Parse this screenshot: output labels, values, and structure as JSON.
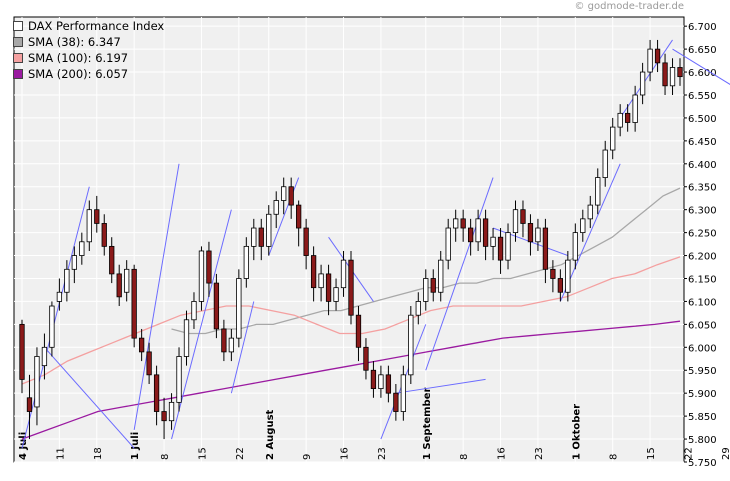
{
  "watermark": "© godmode-trader.de",
  "legend": [
    {
      "label": "DAX Performance Index",
      "color": "#ffffff"
    },
    {
      "label": "SMA (38): 6.347",
      "color": "#a8a8a8"
    },
    {
      "label": "SMA (100): 6.197",
      "color": "#f4a0a0"
    },
    {
      "label": "SMA (200): 6.057",
      "color": "#9a1aa0"
    }
  ],
  "chart_data": {
    "type": "candlestick",
    "title": "",
    "ylim": [
      5.75,
      6.72
    ],
    "y_ticks": [
      "5.750",
      "5.800",
      "5.850",
      "5.900",
      "5.950",
      "6.000",
      "6.050",
      "6.100",
      "6.150",
      "6.200",
      "6.250",
      "6.300",
      "6.350",
      "6.400",
      "6.450",
      "6.500",
      "6.550",
      "6.600",
      "6.650",
      "6.700"
    ],
    "y_tick_values": [
      5.75,
      5.8,
      5.85,
      5.9,
      5.95,
      6.0,
      6.05,
      6.1,
      6.15,
      6.2,
      6.25,
      6.3,
      6.35,
      6.4,
      6.45,
      6.5,
      6.55,
      6.6,
      6.65,
      6.7
    ],
    "x_ticks": [
      {
        "label": "4 Juli",
        "i": 0,
        "bold": true
      },
      {
        "label": "11",
        "i": 5,
        "bold": false
      },
      {
        "label": "18",
        "i": 10,
        "bold": false
      },
      {
        "label": "1 Juli",
        "i": 15,
        "bold": true
      },
      {
        "label": "8",
        "i": 19,
        "bold": false
      },
      {
        "label": "15",
        "i": 24,
        "bold": false
      },
      {
        "label": "22",
        "i": 29,
        "bold": false
      },
      {
        "label": "2 August",
        "i": 33,
        "bold": true
      },
      {
        "label": "9",
        "i": 38,
        "bold": false
      },
      {
        "label": "16",
        "i": 43,
        "bold": false
      },
      {
        "label": "23",
        "i": 48,
        "bold": false
      },
      {
        "label": "1 September",
        "i": 54,
        "bold": true
      },
      {
        "label": "8",
        "i": 59,
        "bold": false
      },
      {
        "label": "16",
        "i": 64,
        "bold": false
      },
      {
        "label": "23",
        "i": 69,
        "bold": false
      },
      {
        "label": "1 Oktober",
        "i": 74,
        "bold": true
      },
      {
        "label": "8",
        "i": 79,
        "bold": false
      },
      {
        "label": "15",
        "i": 84,
        "bold": false
      },
      {
        "label": "22",
        "i": 89,
        "bold": false
      },
      {
        "label": "29",
        "i": 94,
        "bold": false
      }
    ],
    "candles": [
      [
        6.05,
        5.93,
        6.06,
        5.9
      ],
      [
        5.89,
        5.86,
        5.94,
        5.8
      ],
      [
        5.87,
        5.98,
        6.0,
        5.83
      ],
      [
        5.96,
        6.0,
        6.03,
        5.93
      ],
      [
        6.0,
        6.09,
        6.1,
        5.98
      ],
      [
        6.1,
        6.12,
        6.15,
        6.08
      ],
      [
        6.12,
        6.17,
        6.19,
        6.1
      ],
      [
        6.17,
        6.2,
        6.22,
        6.14
      ],
      [
        6.2,
        6.23,
        6.25,
        6.18
      ],
      [
        6.23,
        6.3,
        6.32,
        6.21
      ],
      [
        6.3,
        6.27,
        6.33,
        6.25
      ],
      [
        6.27,
        6.22,
        6.29,
        6.2
      ],
      [
        6.22,
        6.16,
        6.24,
        6.14
      ],
      [
        6.16,
        6.11,
        6.18,
        6.09
      ],
      [
        6.12,
        6.17,
        6.19,
        6.1
      ],
      [
        6.17,
        6.02,
        6.18,
        6.0
      ],
      [
        6.02,
        5.99,
        6.04,
        5.97
      ],
      [
        5.99,
        5.94,
        6.01,
        5.92
      ],
      [
        5.94,
        5.86,
        5.96,
        5.83
      ],
      [
        5.86,
        5.84,
        5.89,
        5.8
      ],
      [
        5.84,
        5.88,
        5.9,
        5.82
      ],
      [
        5.88,
        5.98,
        6.0,
        5.86
      ],
      [
        5.98,
        6.06,
        6.08,
        5.96
      ],
      [
        6.06,
        6.1,
        6.12,
        6.04
      ],
      [
        6.1,
        6.21,
        6.22,
        6.08
      ],
      [
        6.21,
        6.14,
        6.23,
        6.11
      ],
      [
        6.14,
        6.04,
        6.16,
        6.02
      ],
      [
        6.04,
        5.99,
        6.06,
        5.97
      ],
      [
        5.99,
        6.02,
        6.04,
        5.97
      ],
      [
        6.02,
        6.15,
        6.17,
        6.0
      ],
      [
        6.15,
        6.22,
        6.24,
        6.13
      ],
      [
        6.22,
        6.26,
        6.28,
        6.19
      ],
      [
        6.26,
        6.22,
        6.28,
        6.19
      ],
      [
        6.22,
        6.29,
        6.31,
        6.2
      ],
      [
        6.29,
        6.32,
        6.34,
        6.26
      ],
      [
        6.32,
        6.35,
        6.37,
        6.29
      ],
      [
        6.35,
        6.31,
        6.37,
        6.28
      ],
      [
        6.31,
        6.26,
        6.32,
        6.22
      ],
      [
        6.26,
        6.2,
        6.28,
        6.17
      ],
      [
        6.2,
        6.13,
        6.22,
        6.1
      ],
      [
        6.13,
        6.16,
        6.18,
        6.1
      ],
      [
        6.16,
        6.1,
        6.18,
        6.07
      ],
      [
        6.1,
        6.13,
        6.15,
        6.08
      ],
      [
        6.13,
        6.19,
        6.21,
        6.11
      ],
      [
        6.19,
        6.07,
        6.21,
        6.05
      ],
      [
        6.07,
        6.0,
        6.09,
        5.97
      ],
      [
        6.0,
        5.95,
        6.02,
        5.93
      ],
      [
        5.95,
        5.91,
        5.97,
        5.89
      ],
      [
        5.91,
        5.94,
        5.96,
        5.89
      ],
      [
        5.94,
        5.9,
        5.96,
        5.88
      ],
      [
        5.9,
        5.86,
        5.92,
        5.84
      ],
      [
        5.86,
        5.94,
        5.96,
        5.84
      ],
      [
        5.94,
        6.07,
        6.09,
        5.92
      ],
      [
        6.07,
        6.1,
        6.12,
        6.05
      ],
      [
        6.1,
        6.15,
        6.17,
        6.08
      ],
      [
        6.15,
        6.12,
        6.17,
        6.1
      ],
      [
        6.12,
        6.19,
        6.21,
        6.1
      ],
      [
        6.19,
        6.26,
        6.28,
        6.17
      ],
      [
        6.26,
        6.28,
        6.3,
        6.23
      ],
      [
        6.28,
        6.26,
        6.3,
        6.23
      ],
      [
        6.26,
        6.23,
        6.28,
        6.2
      ],
      [
        6.23,
        6.28,
        6.3,
        6.21
      ],
      [
        6.28,
        6.22,
        6.3,
        6.19
      ],
      [
        6.22,
        6.24,
        6.26,
        6.19
      ],
      [
        6.24,
        6.19,
        6.26,
        6.16
      ],
      [
        6.19,
        6.25,
        6.27,
        6.17
      ],
      [
        6.25,
        6.3,
        6.32,
        6.23
      ],
      [
        6.3,
        6.27,
        6.32,
        6.24
      ],
      [
        6.27,
        6.23,
        6.29,
        6.2
      ],
      [
        6.23,
        6.26,
        6.28,
        6.21
      ],
      [
        6.26,
        6.17,
        6.28,
        6.14
      ],
      [
        6.17,
        6.15,
        6.19,
        6.12
      ],
      [
        6.15,
        6.12,
        6.17,
        6.1
      ],
      [
        6.12,
        6.19,
        6.21,
        6.1
      ],
      [
        6.19,
        6.25,
        6.27,
        6.17
      ],
      [
        6.25,
        6.28,
        6.3,
        6.23
      ],
      [
        6.28,
        6.31,
        6.33,
        6.26
      ],
      [
        6.31,
        6.37,
        6.39,
        6.29
      ],
      [
        6.37,
        6.43,
        6.45,
        6.35
      ],
      [
        6.43,
        6.48,
        6.5,
        6.41
      ],
      [
        6.48,
        6.51,
        6.53,
        6.46
      ],
      [
        6.51,
        6.49,
        6.53,
        6.47
      ],
      [
        6.49,
        6.55,
        6.57,
        6.47
      ],
      [
        6.55,
        6.6,
        6.62,
        6.53
      ],
      [
        6.6,
        6.65,
        6.67,
        6.58
      ],
      [
        6.65,
        6.62,
        6.67,
        6.6
      ],
      [
        6.62,
        6.57,
        6.64,
        6.55
      ],
      [
        6.57,
        6.61,
        6.63,
        6.55
      ],
      [
        6.61,
        6.59,
        6.63,
        6.57
      ]
    ],
    "series": [
      {
        "name": "SMA (38): 6.347",
        "color": "#a8a8a8",
        "values": [
          6.04,
          6.03,
          6.03,
          6.04,
          6.04,
          6.05,
          6.05,
          6.06,
          6.07,
          6.08,
          6.08,
          6.09,
          6.1,
          6.11,
          6.12,
          6.13,
          6.13,
          6.14,
          6.14,
          6.15,
          6.15,
          6.16,
          6.17,
          6.18,
          6.2,
          6.22,
          6.24,
          6.27,
          6.3,
          6.33,
          6.347
        ]
      },
      {
        "name": "SMA (100): 6.197",
        "color": "#f4a0a0",
        "values": [
          5.92,
          5.94,
          5.97,
          5.99,
          6.01,
          6.03,
          6.05,
          6.07,
          6.08,
          6.09,
          6.09,
          6.08,
          6.07,
          6.05,
          6.03,
          6.03,
          6.04,
          6.06,
          6.08,
          6.09,
          6.09,
          6.09,
          6.09,
          6.1,
          6.11,
          6.13,
          6.15,
          6.16,
          6.18,
          6.197
        ]
      },
      {
        "name": "SMA (200): 6.057",
        "color": "#9a1aa0",
        "values": [
          5.8,
          5.82,
          5.84,
          5.86,
          5.87,
          5.88,
          5.89,
          5.9,
          5.91,
          5.92,
          5.93,
          5.94,
          5.95,
          5.96,
          5.97,
          5.98,
          5.99,
          6.0,
          6.01,
          6.02,
          6.025,
          6.03,
          6.035,
          6.04,
          6.045,
          6.05,
          6.057
        ]
      }
    ],
    "trendlines": [
      [
        [
          0,
          5.78
        ],
        [
          9,
          6.35
        ]
      ],
      [
        [
          3,
          6.0
        ],
        [
          15,
          5.78
        ]
      ],
      [
        [
          15,
          5.82
        ],
        [
          21,
          6.4
        ]
      ],
      [
        [
          20,
          5.8
        ],
        [
          28,
          6.3
        ]
      ],
      [
        [
          28,
          5.9
        ],
        [
          31,
          6.1
        ]
      ],
      [
        [
          33,
          6.2
        ],
        [
          37,
          6.37
        ]
      ],
      [
        [
          41,
          6.24
        ],
        [
          47,
          6.1
        ]
      ],
      [
        [
          48,
          5.8
        ],
        [
          54,
          6.05
        ]
      ],
      [
        [
          50,
          5.9
        ],
        [
          62,
          5.93
        ]
      ],
      [
        [
          54,
          5.95
        ],
        [
          63,
          6.37
        ]
      ],
      [
        [
          63,
          6.26
        ],
        [
          73,
          6.2
        ]
      ],
      [
        [
          72,
          6.1
        ],
        [
          80,
          6.4
        ]
      ],
      [
        [
          80,
          6.5
        ],
        [
          87,
          6.67
        ]
      ],
      [
        [
          87,
          6.65
        ],
        [
          95,
          6.57
        ]
      ]
    ]
  }
}
